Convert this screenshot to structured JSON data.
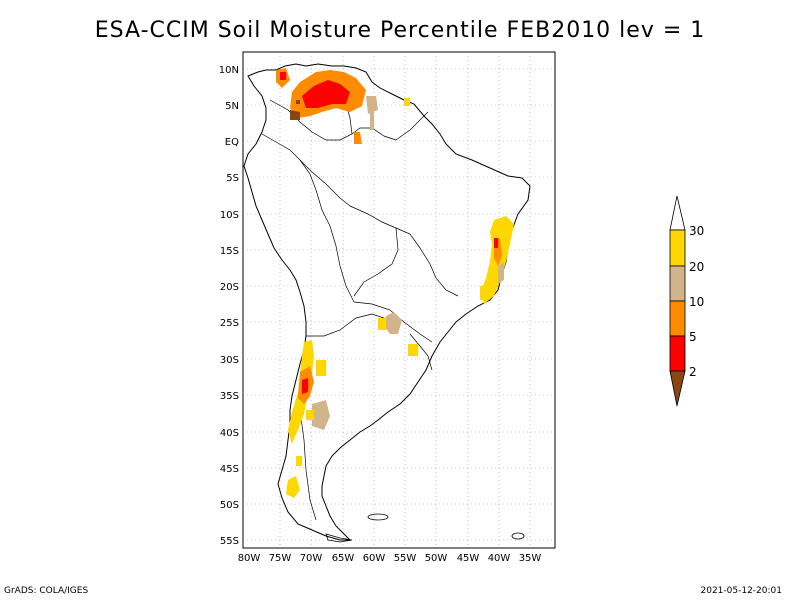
{
  "title": "ESA-CCIM Soil Moisture Percentile FEB2010 lev = 1",
  "footer": {
    "left": "GrADS: COLA/IGES",
    "right": "2021-05-12-20:01"
  },
  "map": {
    "lon_range": [
      -80,
      -30
    ],
    "lat_range": [
      -55,
      11
    ],
    "lon_ticks": [
      "80W",
      "75W",
      "70W",
      "65W",
      "60W",
      "55W",
      "50W",
      "45W",
      "40W",
      "35W"
    ],
    "lat_ticks": [
      "10N",
      "5N",
      "EQ",
      "5S",
      "10S",
      "15S",
      "20S",
      "25S",
      "30S",
      "35S",
      "40S",
      "45S",
      "50S",
      "55S"
    ],
    "grid": "dotted"
  },
  "colorbar": {
    "labels": [
      "2",
      "5",
      "10",
      "20",
      "30"
    ],
    "colors": {
      "lt2": "#8B4513",
      "2to5": "#ff0000",
      "5to10": "#ff8c00",
      "10to20": "#d2b48c",
      "20to30": "#ffd700",
      "gt30": "#ffffff"
    }
  }
}
